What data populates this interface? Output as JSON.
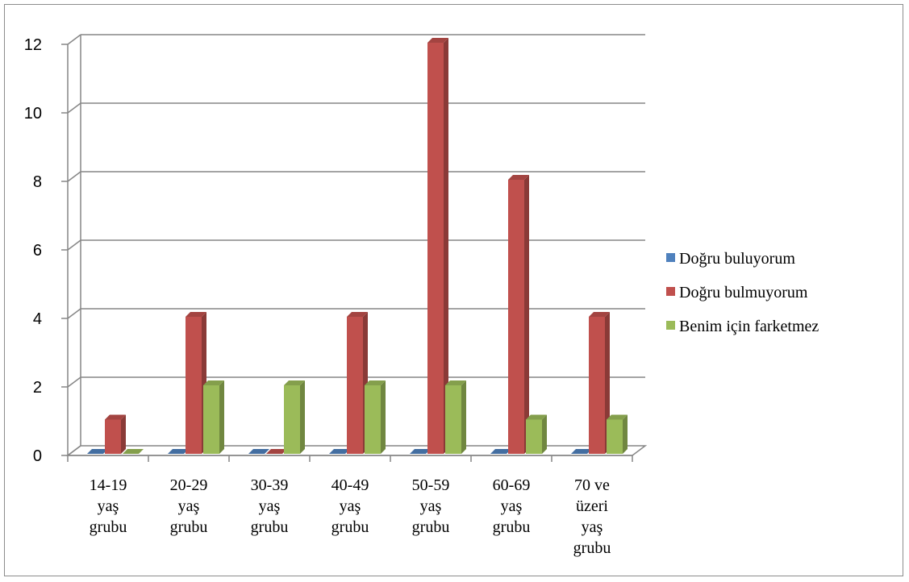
{
  "chart_data": {
    "type": "bar",
    "style": "3d-clustered-column",
    "categories": [
      [
        "14-19",
        "yaş",
        "grubu"
      ],
      [
        "20-29",
        "yaş",
        "grubu"
      ],
      [
        "30-39",
        "yaş",
        "grubu"
      ],
      [
        "40-49",
        "yaş",
        "grubu"
      ],
      [
        "50-59",
        "yaş",
        "grubu"
      ],
      [
        "60-69",
        "yaş",
        "grubu"
      ],
      [
        "70 ve",
        "üzeri",
        "yaş",
        "grubu"
      ]
    ],
    "series": [
      {
        "name": "Doğru buluyorum",
        "color": "#4f81bd",
        "values": [
          0,
          0,
          0,
          0,
          0,
          0,
          0
        ]
      },
      {
        "name": "Doğru bulmuyorum",
        "color": "#c0504d",
        "values": [
          1,
          4,
          0,
          4,
          12,
          8,
          4
        ]
      },
      {
        "name": "Benim için farketmez",
        "color": "#9bbb59",
        "values": [
          0,
          2,
          2,
          2,
          2,
          1,
          1
        ]
      }
    ],
    "ylim": [
      0,
      12
    ],
    "yticks": [
      "0",
      "2",
      "4",
      "6",
      "8",
      "10",
      "12"
    ],
    "grid": true,
    "legend_position": "right"
  }
}
